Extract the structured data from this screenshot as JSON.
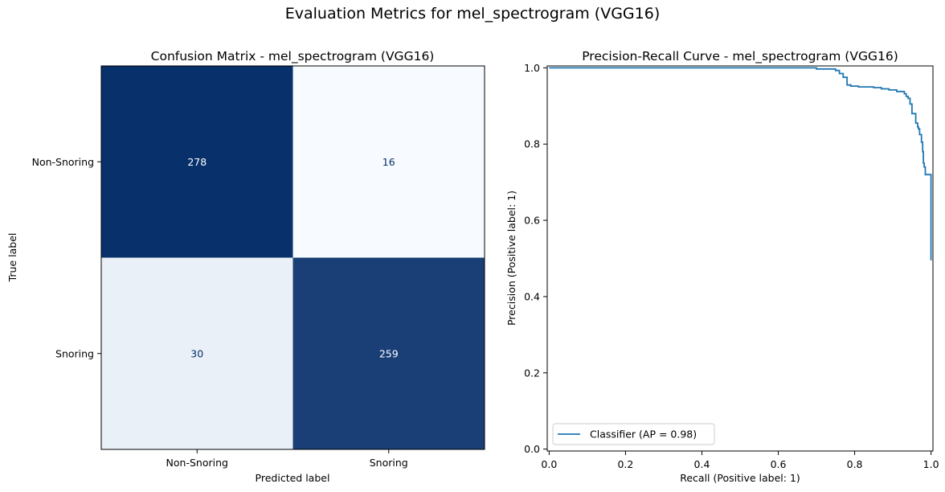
{
  "figure": {
    "title": "Evaluation Metrics for mel_spectrogram (VGG16)"
  },
  "chart_data": [
    {
      "type": "heatmap",
      "title": "Confusion Matrix - mel_spectrogram (VGG16)",
      "xlabel": "Predicted label",
      "ylabel": "True label",
      "x_categories": [
        "Non-Snoring",
        "Snoring"
      ],
      "y_categories": [
        "Non-Snoring",
        "Snoring"
      ],
      "values": [
        [
          278,
          16
        ],
        [
          30,
          259
        ]
      ],
      "colormap": "Blues",
      "colors": {
        "cmap_low": "#f7fbff",
        "cmap_high": "#08306b",
        "text_light": "#ffffff",
        "text_dark": "#08306b"
      }
    },
    {
      "type": "line",
      "title": "Precision-Recall Curve - mel_spectrogram (VGG16)",
      "xlabel": "Recall (Positive label: 1)",
      "ylabel": "Precision (Positive label: 1)",
      "xlim": [
        -0.005,
        1.005
      ],
      "ylim": [
        -0.005,
        1.005
      ],
      "xticks": [
        "0.0",
        "0.2",
        "0.4",
        "0.6",
        "0.8",
        "1.0"
      ],
      "yticks": [
        "0.0",
        "0.2",
        "0.4",
        "0.6",
        "0.8",
        "1.0"
      ],
      "legend": "lower-left",
      "grid": false,
      "series": [
        {
          "name": "Classifier (AP = 0.98)",
          "color": "#1f77b4",
          "x": [
            0.0,
            0.7,
            0.7,
            0.75,
            0.75,
            0.76,
            0.76,
            0.77,
            0.77,
            0.78,
            0.78,
            0.79,
            0.79,
            0.81,
            0.81,
            0.85,
            0.85,
            0.87,
            0.87,
            0.89,
            0.89,
            0.91,
            0.91,
            0.93,
            0.93,
            0.935,
            0.935,
            0.94,
            0.94,
            0.945,
            0.945,
            0.95,
            0.95,
            0.96,
            0.96,
            0.965,
            0.965,
            0.967,
            0.967,
            0.97,
            0.97,
            0.975,
            0.975,
            0.978,
            0.978,
            0.98,
            0.98,
            0.982,
            0.982,
            0.985,
            0.985,
            0.99,
            0.99,
            1.0,
            1.0
          ],
          "y": [
            1.0,
            1.0,
            0.997,
            0.997,
            0.993,
            0.993,
            0.985,
            0.985,
            0.975,
            0.975,
            0.955,
            0.955,
            0.952,
            0.952,
            0.95,
            0.95,
            0.948,
            0.948,
            0.945,
            0.945,
            0.942,
            0.942,
            0.938,
            0.938,
            0.932,
            0.932,
            0.925,
            0.925,
            0.92,
            0.92,
            0.905,
            0.905,
            0.88,
            0.88,
            0.855,
            0.855,
            0.845,
            0.845,
            0.84,
            0.84,
            0.825,
            0.825,
            0.805,
            0.805,
            0.78,
            0.78,
            0.75,
            0.75,
            0.74,
            0.74,
            0.72,
            0.72,
            0.72,
            0.72,
            0.495
          ]
        }
      ]
    }
  ]
}
